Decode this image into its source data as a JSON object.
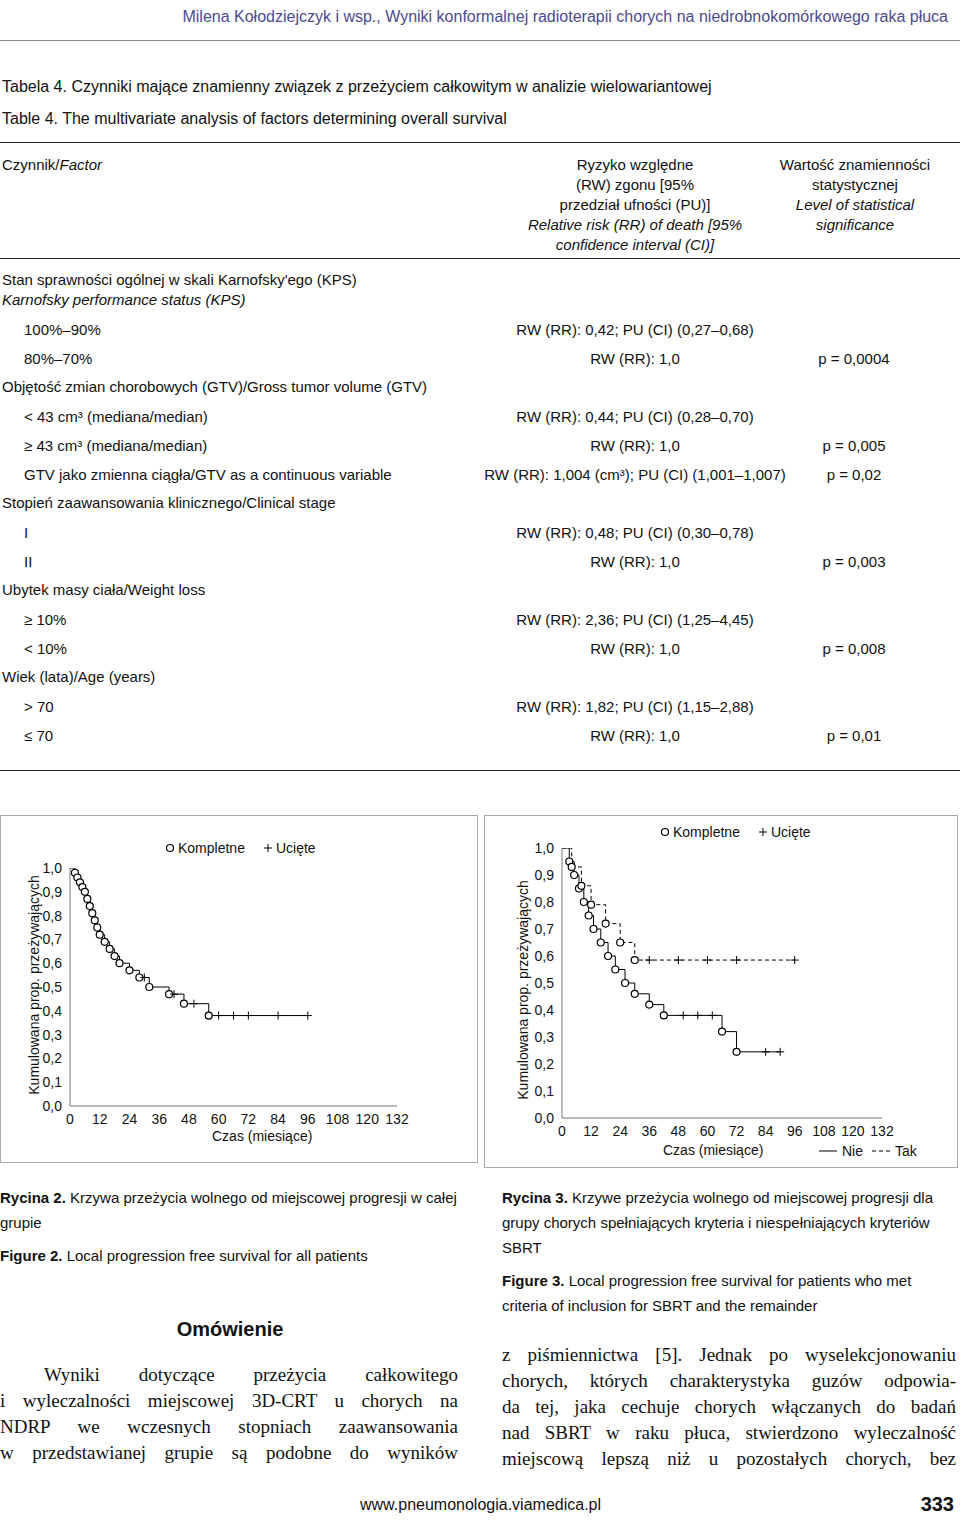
{
  "header": "Milena Kołodziejczyk i wsp., Wyniki konformalnej radioterapii chorych na niedrobnokomórkowego raka płuca",
  "table": {
    "title_pl": "Tabela 4. Czynniki mające znamienny związek z przeżyciem całkowitym w analizie wielowariantowej",
    "title_en": "Table 4. The multivariate analysis of factors determining overall survival",
    "columns": [
      {
        "pl": [
          "Czynnik/"
        ],
        "en": [
          "Factor"
        ]
      },
      {
        "pl": [
          "Ryzyko względne",
          "(RW) zgonu [95%",
          "przedział ufności (PU)]"
        ],
        "en": [
          "Relative risk (RR) of death [95%",
          "confidence interval (CI)]"
        ]
      },
      {
        "pl": [
          "Wartość znamienności",
          "statystycznej"
        ],
        "en": [
          "Level of statistical",
          "significance"
        ]
      }
    ],
    "rows": [
      {
        "factor": [
          "Stan sprawności ogólnej w skali Karnofsky'ego (KPS)"
        ],
        "factor_en": [
          "Karnofsky performance status (KPS)"
        ]
      },
      {
        "level": "100%–90%",
        "rr": "RW (RR): 0,42; PU (CI) (0,27–0,68)",
        "p": ""
      },
      {
        "level": "80%–70%",
        "rr": "RW (RR): 1,0",
        "p": "p = 0,0004"
      },
      {
        "factor": [
          "Objętość zmian chorobowych (GTV)/Gross tumor volume (GTV)"
        ],
        "factor_en": []
      },
      {
        "level": "< 43 cm³ (mediana/median)",
        "rr": "RW (RR): 0,44; PU (CI) (0,28–0,70)",
        "p": ""
      },
      {
        "level": "≥ 43 cm³ (mediana/median)",
        "rr": "RW (RR): 1,0",
        "p": "p = 0,005"
      },
      {
        "level": "GTV jako zmienna ciągła/GTV as a continuous variable",
        "rr": "RW (RR): 1,004 (cm³); PU (CI) (1,001–1,007)",
        "p": "p = 0,02"
      },
      {
        "factor": [
          "Stopień zaawansowania klinicznego/Clinical stage"
        ],
        "factor_en": []
      },
      {
        "level": "I",
        "rr": "RW (RR): 0,48; PU (CI) (0,30–0,78)",
        "p": ""
      },
      {
        "level": "II",
        "rr": "RW (RR): 1,0",
        "p": "p = 0,003"
      },
      {
        "factor": [
          "Ubytek masy ciała/Weight loss"
        ],
        "factor_en": []
      },
      {
        "level": "≥ 10%",
        "rr": "RW (RR): 2,36; PU (CI) (1,25–4,45)",
        "p": ""
      },
      {
        "level": "< 10%",
        "rr": "RW (RR): 1,0",
        "p": "p = 0,008"
      },
      {
        "factor": [
          "Wiek (lata)/Age (years)"
        ],
        "factor_en": []
      },
      {
        "level": "> 70",
        "rr": "RW (RR): 1,82; PU (CI) (1,15–2,88)",
        "p": ""
      },
      {
        "level": "≤ 70",
        "rr": "RW (RR): 1,0",
        "p": "p = 0,01"
      }
    ]
  },
  "chart_data": [
    {
      "type": "step",
      "x_label": "Czas (miesiące)",
      "y_label": "Kumulowana prop. przeżywających",
      "xlim": [
        0,
        132
      ],
      "xticks": [
        0,
        12,
        24,
        36,
        48,
        60,
        72,
        84,
        96,
        108,
        120,
        132
      ],
      "ylim": [
        0,
        1
      ],
      "yticks": [
        {
          "value": 0,
          "label": "0,0"
        },
        {
          "value": 0.1,
          "label": "0,1"
        },
        {
          "value": 0.2,
          "label": "0,2"
        },
        {
          "value": 0.3,
          "label": "0,3"
        },
        {
          "value": 0.4,
          "label": "0,4"
        },
        {
          "value": 0.5,
          "label": "0,5"
        },
        {
          "value": 0.6,
          "label": "0,6"
        },
        {
          "value": 0.7,
          "label": "0,7"
        },
        {
          "value": 0.8,
          "label": "0,8"
        },
        {
          "value": 0.9,
          "label": "0,9"
        },
        {
          "value": 1,
          "label": "1,0"
        }
      ],
      "markers": {
        "event": {
          "name": "Kompletne",
          "marker": "circle"
        },
        "censored": {
          "name": "Ucięte",
          "marker": "plus"
        }
      },
      "series": [
        {
          "line_style": "solid",
          "x": [
            0,
            2,
            3,
            4,
            5,
            6,
            7,
            8,
            9,
            10,
            11,
            12,
            14,
            16,
            18,
            20,
            24,
            28,
            30,
            32,
            40,
            42,
            46,
            50,
            56,
            60,
            66,
            72,
            84,
            96
          ],
          "values": [
            1.0,
            0.98,
            0.96,
            0.94,
            0.92,
            0.9,
            0.87,
            0.84,
            0.81,
            0.78,
            0.75,
            0.72,
            0.69,
            0.66,
            0.63,
            0.6,
            0.57,
            0.54,
            0.54,
            0.5,
            0.47,
            0.47,
            0.43,
            0.43,
            0.38,
            0.38,
            0.38,
            0.38,
            0.38,
            0.38
          ],
          "censored": [
            null,
            false,
            false,
            false,
            false,
            false,
            false,
            false,
            false,
            false,
            false,
            false,
            false,
            false,
            false,
            false,
            false,
            false,
            true,
            false,
            false,
            true,
            false,
            true,
            false,
            true,
            true,
            true,
            true,
            true
          ]
        }
      ]
    },
    {
      "type": "step",
      "x_label": "Czas (miesiące)",
      "y_label": "Kumulowana prop. przeżywających",
      "xlim": [
        0,
        132
      ],
      "xticks": [
        0,
        12,
        24,
        36,
        48,
        60,
        72,
        84,
        96,
        108,
        120,
        132
      ],
      "ylim": [
        0,
        1
      ],
      "yticks": [
        {
          "value": 0,
          "label": "0,0"
        },
        {
          "value": 0.1,
          "label": "0,1"
        },
        {
          "value": 0.2,
          "label": "0,2"
        },
        {
          "value": 0.3,
          "label": "0,3"
        },
        {
          "value": 0.4,
          "label": "0,4"
        },
        {
          "value": 0.5,
          "label": "0,5"
        },
        {
          "value": 0.6,
          "label": "0,6"
        },
        {
          "value": 0.7,
          "label": "0,7"
        },
        {
          "value": 0.8,
          "label": "0,8"
        },
        {
          "value": 0.9,
          "label": "0,9"
        },
        {
          "value": 1,
          "label": "1,0"
        }
      ],
      "markers": {
        "event": {
          "name": "Kompletne",
          "marker": "circle"
        },
        "censored": {
          "name": "Ucięte",
          "marker": "plus"
        }
      },
      "series": [
        {
          "name": "Nie",
          "line_style": "solid",
          "x": [
            0,
            3,
            5,
            7,
            9,
            11,
            13,
            16,
            19,
            22,
            26,
            30,
            36,
            42,
            50,
            56,
            62,
            66,
            72,
            84,
            90
          ],
          "values": [
            1.0,
            0.95,
            0.9,
            0.85,
            0.8,
            0.75,
            0.7,
            0.65,
            0.6,
            0.55,
            0.5,
            0.46,
            0.42,
            0.38,
            0.38,
            0.38,
            0.38,
            0.32,
            0.245,
            0.245,
            0.245
          ],
          "censored": [
            null,
            false,
            false,
            false,
            false,
            false,
            false,
            false,
            false,
            false,
            false,
            false,
            false,
            false,
            true,
            true,
            true,
            false,
            false,
            true,
            true
          ]
        },
        {
          "name": "Tak",
          "line_style": "dashed",
          "x": [
            0,
            4,
            8,
            12,
            18,
            24,
            30,
            36,
            48,
            60,
            72,
            96
          ],
          "values": [
            1.0,
            0.93,
            0.86,
            0.79,
            0.72,
            0.65,
            0.585,
            0.585,
            0.585,
            0.585,
            0.585,
            0.585
          ],
          "censored": [
            null,
            false,
            false,
            false,
            false,
            false,
            false,
            true,
            true,
            true,
            true,
            true
          ]
        }
      ]
    }
  ],
  "figures": [
    {
      "label_pl": "Rycina 2.",
      "text_pl": "Krzywa przeżycia wolnego od miejscowej progresji w całej grupie",
      "label_en": "Figure 2.",
      "text_en": "Local progression free survival for all patients"
    },
    {
      "label_pl": "Rycina 3.",
      "text_pl": "Krzywe przeżycia wolnego od miejscowej progresji dla grupy chorych spełniających kryteria i niespełniających kryteriów SBRT",
      "label_en": "Figure 3.",
      "text_en": "Local progression free survival for patients who met criteria of inclusion for SBRT and the remainder"
    }
  ],
  "section_title": "Omówienie",
  "body_left": [
    "Wyniki dotyczące przeżycia całkowitego",
    "i wyleczalności miejscowej 3D-CRT u chorych na",
    "NDRP we wczesnych stopniach zaawansowania",
    "w przedstawianej grupie są podobne do wyników"
  ],
  "body_right": [
    "z piśmiennictwa [5]. Jednak po wyselekcjonowaniu",
    "chorych, których charakterystyka guzów odpowia-",
    "da tej, jaka cechuje chorych włączanych do badań",
    "nad SBRT w raku płuca, stwierdzono wyleczalność",
    "miejscową lepszą niż u pozostałych chorych, bez"
  ],
  "footer": {
    "url": "www.pneumonologia.viamedica.pl",
    "page": "333"
  }
}
